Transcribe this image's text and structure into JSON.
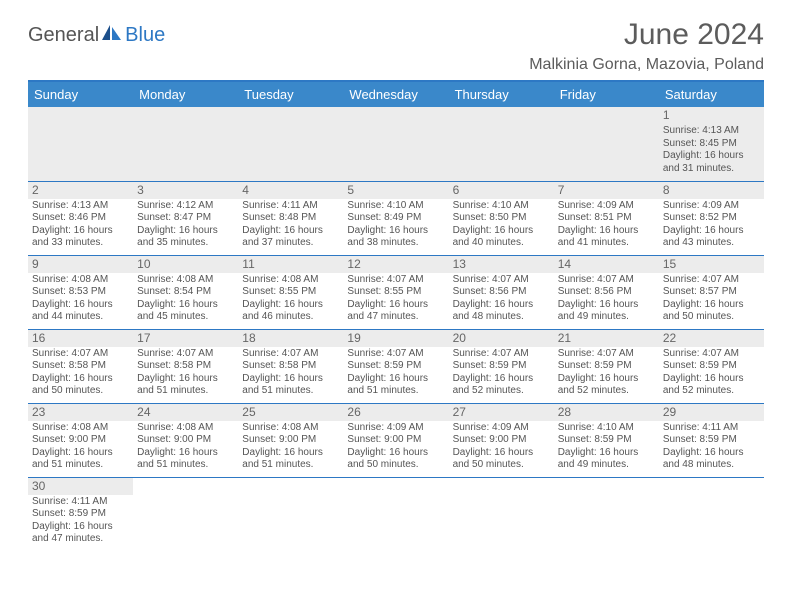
{
  "logo": {
    "part1": "General",
    "part2": "Blue"
  },
  "title": "June 2024",
  "location": "Malkinia Gorna, Mazovia, Poland",
  "colors": {
    "header_bg": "#3a88ca",
    "header_text": "#ffffff",
    "border": "#2d78c4",
    "daybar": "#ececec",
    "text": "#555555"
  },
  "weekdays": [
    "Sunday",
    "Monday",
    "Tuesday",
    "Wednesday",
    "Thursday",
    "Friday",
    "Saturday"
  ],
  "days": {
    "1": {
      "sunrise": "4:13 AM",
      "sunset": "8:45 PM",
      "daylight": "16 hours and 31 minutes."
    },
    "2": {
      "sunrise": "4:13 AM",
      "sunset": "8:46 PM",
      "daylight": "16 hours and 33 minutes."
    },
    "3": {
      "sunrise": "4:12 AM",
      "sunset": "8:47 PM",
      "daylight": "16 hours and 35 minutes."
    },
    "4": {
      "sunrise": "4:11 AM",
      "sunset": "8:48 PM",
      "daylight": "16 hours and 37 minutes."
    },
    "5": {
      "sunrise": "4:10 AM",
      "sunset": "8:49 PM",
      "daylight": "16 hours and 38 minutes."
    },
    "6": {
      "sunrise": "4:10 AM",
      "sunset": "8:50 PM",
      "daylight": "16 hours and 40 minutes."
    },
    "7": {
      "sunrise": "4:09 AM",
      "sunset": "8:51 PM",
      "daylight": "16 hours and 41 minutes."
    },
    "8": {
      "sunrise": "4:09 AM",
      "sunset": "8:52 PM",
      "daylight": "16 hours and 43 minutes."
    },
    "9": {
      "sunrise": "4:08 AM",
      "sunset": "8:53 PM",
      "daylight": "16 hours and 44 minutes."
    },
    "10": {
      "sunrise": "4:08 AM",
      "sunset": "8:54 PM",
      "daylight": "16 hours and 45 minutes."
    },
    "11": {
      "sunrise": "4:08 AM",
      "sunset": "8:55 PM",
      "daylight": "16 hours and 46 minutes."
    },
    "12": {
      "sunrise": "4:07 AM",
      "sunset": "8:55 PM",
      "daylight": "16 hours and 47 minutes."
    },
    "13": {
      "sunrise": "4:07 AM",
      "sunset": "8:56 PM",
      "daylight": "16 hours and 48 minutes."
    },
    "14": {
      "sunrise": "4:07 AM",
      "sunset": "8:56 PM",
      "daylight": "16 hours and 49 minutes."
    },
    "15": {
      "sunrise": "4:07 AM",
      "sunset": "8:57 PM",
      "daylight": "16 hours and 50 minutes."
    },
    "16": {
      "sunrise": "4:07 AM",
      "sunset": "8:58 PM",
      "daylight": "16 hours and 50 minutes."
    },
    "17": {
      "sunrise": "4:07 AM",
      "sunset": "8:58 PM",
      "daylight": "16 hours and 51 minutes."
    },
    "18": {
      "sunrise": "4:07 AM",
      "sunset": "8:58 PM",
      "daylight": "16 hours and 51 minutes."
    },
    "19": {
      "sunrise": "4:07 AM",
      "sunset": "8:59 PM",
      "daylight": "16 hours and 51 minutes."
    },
    "20": {
      "sunrise": "4:07 AM",
      "sunset": "8:59 PM",
      "daylight": "16 hours and 52 minutes."
    },
    "21": {
      "sunrise": "4:07 AM",
      "sunset": "8:59 PM",
      "daylight": "16 hours and 52 minutes."
    },
    "22": {
      "sunrise": "4:07 AM",
      "sunset": "8:59 PM",
      "daylight": "16 hours and 52 minutes."
    },
    "23": {
      "sunrise": "4:08 AM",
      "sunset": "9:00 PM",
      "daylight": "16 hours and 51 minutes."
    },
    "24": {
      "sunrise": "4:08 AM",
      "sunset": "9:00 PM",
      "daylight": "16 hours and 51 minutes."
    },
    "25": {
      "sunrise": "4:08 AM",
      "sunset": "9:00 PM",
      "daylight": "16 hours and 51 minutes."
    },
    "26": {
      "sunrise": "4:09 AM",
      "sunset": "9:00 PM",
      "daylight": "16 hours and 50 minutes."
    },
    "27": {
      "sunrise": "4:09 AM",
      "sunset": "9:00 PM",
      "daylight": "16 hours and 50 minutes."
    },
    "28": {
      "sunrise": "4:10 AM",
      "sunset": "8:59 PM",
      "daylight": "16 hours and 49 minutes."
    },
    "29": {
      "sunrise": "4:11 AM",
      "sunset": "8:59 PM",
      "daylight": "16 hours and 48 minutes."
    },
    "30": {
      "sunrise": "4:11 AM",
      "sunset": "8:59 PM",
      "daylight": "16 hours and 47 minutes."
    }
  },
  "labels": {
    "sunrise": "Sunrise: ",
    "sunset": "Sunset: ",
    "daylight": "Daylight: "
  },
  "grid": [
    [
      null,
      null,
      null,
      null,
      null,
      null,
      "1"
    ],
    [
      "2",
      "3",
      "4",
      "5",
      "6",
      "7",
      "8"
    ],
    [
      "9",
      "10",
      "11",
      "12",
      "13",
      "14",
      "15"
    ],
    [
      "16",
      "17",
      "18",
      "19",
      "20",
      "21",
      "22"
    ],
    [
      "23",
      "24",
      "25",
      "26",
      "27",
      "28",
      "29"
    ],
    [
      "30",
      null,
      null,
      null,
      null,
      null,
      null
    ]
  ]
}
